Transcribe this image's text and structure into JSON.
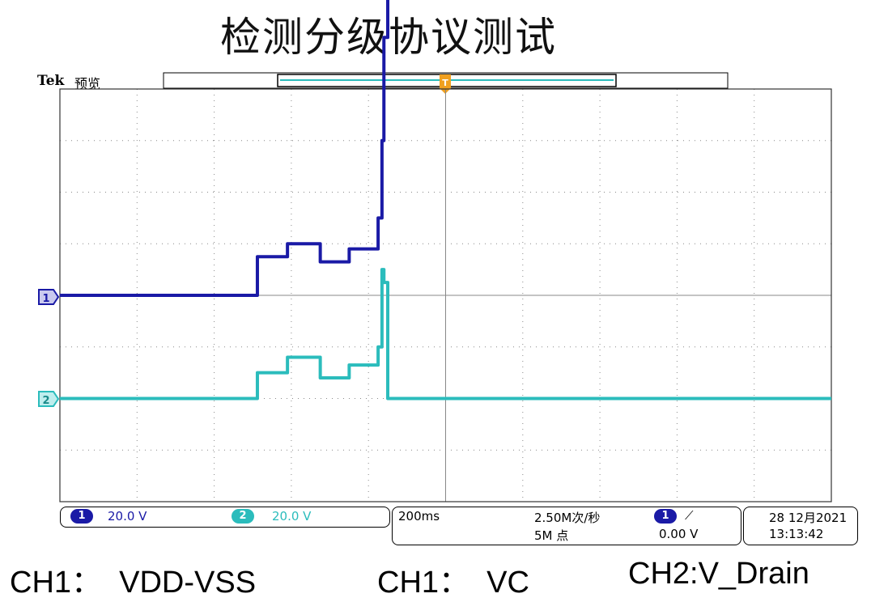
{
  "page_title": "检测分级协议测试",
  "scope": {
    "brand": "Tek",
    "mode": "预览",
    "trigger_marker": "T",
    "ch1_marker": "1",
    "ch2_marker": "2",
    "ch1_scale": "20.0 V",
    "ch2_scale": "20.0 V",
    "ch1_badge": "1",
    "ch2_badge": "2",
    "timebase": "200ms",
    "sample_rate": "2.50M次/秒",
    "record_length": "5M 点",
    "trigger_badge": "1",
    "trigger_slope": "⟋",
    "trigger_level": "0.00 V",
    "date": "28 12月2021",
    "time": "13:13:42",
    "colors": {
      "ch1": "#1a1aa6",
      "ch2": "#2bbcbc",
      "trigger": "#f0a020",
      "grid": "#888888"
    }
  },
  "labels": {
    "left": "CH1：  VDD-VSS",
    "middle": "CH1：  VC",
    "right": "CH2:V_Drain"
  },
  "chart_data": {
    "type": "line",
    "title": "检测分级协议测试",
    "xlabel": "",
    "ylabel": "",
    "x_unit": "ms",
    "xlim": [
      -1000,
      1000
    ],
    "ylim_divisions": [
      -4,
      4
    ],
    "grid": true,
    "series": [
      {
        "name": "CH1：  VDD-VSS",
        "volts_per_div": 20.0,
        "offset_div": 0,
        "x": [
          -1000,
          -490,
          -488,
          -415,
          -410,
          -330,
          -325,
          -255,
          -250,
          -180,
          -175,
          -165,
          -160,
          -150,
          -140,
          -135,
          1000
        ],
        "y": [
          0,
          0,
          15,
          15,
          20,
          20,
          13,
          13,
          18,
          18,
          30,
          60,
          100,
          148,
          150,
          145,
          145
        ]
      },
      {
        "name": "CH2:V_Drain",
        "volts_per_div": 20.0,
        "offset_div": -2,
        "x": [
          -1000,
          -490,
          -488,
          -415,
          -410,
          -330,
          -325,
          -255,
          -250,
          -180,
          -175,
          -165,
          -160,
          -150,
          1000
        ],
        "y": [
          0,
          0,
          10,
          10,
          16,
          16,
          8,
          8,
          13,
          13,
          20,
          50,
          45,
          0,
          0
        ]
      }
    ]
  }
}
